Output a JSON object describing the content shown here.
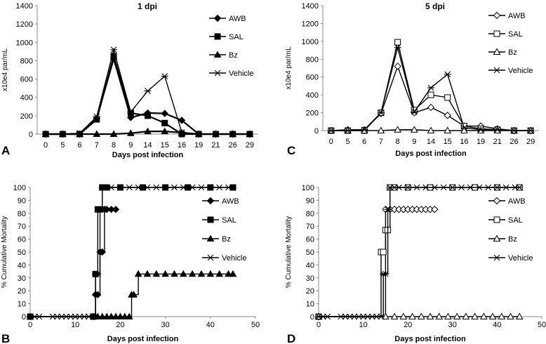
{
  "chart_data": [
    {
      "panel": "A",
      "type": "line",
      "title": "1 dpi",
      "xlabel": "Days post infection",
      "ylabel": "x10e4 par/mL",
      "ylim": [
        0,
        1400
      ],
      "yticks": [
        0,
        200,
        400,
        600,
        800,
        1000,
        1200,
        1400
      ],
      "categories": [
        "0",
        "5",
        "6",
        "7",
        "8",
        "9",
        "14",
        "15",
        "16",
        "19",
        "21",
        "26",
        "29"
      ],
      "series": [
        {
          "name": "AWB",
          "marker": "diamond-filled",
          "values": [
            0,
            0,
            0,
            170,
            820,
            180,
            230,
            225,
            150,
            0,
            0,
            0,
            0
          ]
        },
        {
          "name": "SAL",
          "marker": "square-filled",
          "values": [
            0,
            0,
            0,
            160,
            850,
            230,
            200,
            120,
            0,
            0,
            0,
            0,
            0
          ]
        },
        {
          "name": "Bz",
          "marker": "triangle-filled",
          "values": [
            0,
            0,
            0,
            0,
            0,
            10,
            30,
            30,
            15,
            0,
            0,
            0,
            0
          ]
        },
        {
          "name": "Vehicle",
          "marker": "star",
          "values": [
            0,
            0,
            10,
            190,
            920,
            240,
            470,
            630,
            20,
            0,
            0,
            0,
            0
          ]
        }
      ]
    },
    {
      "panel": "C",
      "type": "line",
      "title": "5 dpi",
      "xlabel": "Days post infection",
      "ylabel": "x10e4 par/mL",
      "ylim": [
        0,
        1400
      ],
      "yticks": [
        0,
        200,
        400,
        600,
        800,
        1000,
        1200,
        1400
      ],
      "categories": [
        "0",
        "5",
        "6",
        "7",
        "8",
        "9",
        "14",
        "15",
        "16",
        "19",
        "21",
        "26",
        "29"
      ],
      "series": [
        {
          "name": "AWB",
          "marker": "diamond-open",
          "values": [
            0,
            10,
            10,
            190,
            720,
            200,
            260,
            170,
            50,
            50,
            20,
            0,
            0
          ]
        },
        {
          "name": "SAL",
          "marker": "square-open",
          "values": [
            0,
            0,
            0,
            200,
            990,
            230,
            400,
            370,
            50,
            20,
            10,
            0,
            0
          ]
        },
        {
          "name": "Bz",
          "marker": "triangle-open",
          "values": [
            0,
            0,
            0,
            0,
            10,
            10,
            0,
            0,
            0,
            0,
            0,
            0,
            0
          ]
        },
        {
          "name": "Vehicle",
          "marker": "star",
          "values": [
            0,
            0,
            10,
            200,
            930,
            210,
            480,
            630,
            30,
            10,
            10,
            0,
            0
          ]
        }
      ]
    },
    {
      "panel": "B",
      "type": "line",
      "title": "",
      "xlabel": "Days post infection",
      "ylabel": "% Cumulative Mortality",
      "xlim": [
        0,
        50
      ],
      "xticks": [
        0,
        10,
        20,
        30,
        40,
        50
      ],
      "ylim": [
        0,
        100
      ],
      "yticks": [
        0,
        10,
        20,
        30,
        40,
        50,
        60,
        70,
        80,
        90,
        100
      ],
      "series": [
        {
          "name": "AWB",
          "marker": "diamond-filled",
          "x": [
            0,
            14,
            14.5,
            15,
            15.5,
            16,
            16.5,
            17,
            18,
            19
          ],
          "y": [
            0,
            0,
            17,
            17,
            50,
            50,
            83,
            83,
            83,
            83
          ]
        },
        {
          "name": "SAL",
          "marker": "square-filled",
          "x": [
            0,
            14,
            14.5,
            15,
            15.5,
            16,
            17,
            20,
            25,
            30,
            35,
            40,
            45
          ],
          "y": [
            0,
            0,
            33,
            83,
            83,
            100,
            100,
            100,
            100,
            100,
            100,
            100,
            100
          ]
        },
        {
          "name": "Bz",
          "marker": "triangle-filled",
          "x": [
            0,
            15,
            16,
            17,
            18,
            19,
            20,
            21,
            22,
            22.5,
            23,
            24,
            26,
            28,
            30,
            32,
            34,
            36,
            38,
            40,
            42,
            44,
            45
          ],
          "y": [
            0,
            0,
            0,
            0,
            0,
            0,
            0,
            0,
            0,
            17,
            17,
            33,
            33,
            33,
            33,
            33,
            33,
            33,
            33,
            33,
            33,
            33,
            33
          ]
        },
        {
          "name": "Vehicle",
          "marker": "star",
          "x": [
            0,
            1,
            2,
            5,
            6,
            7,
            8,
            9,
            10,
            11,
            12,
            13,
            14,
            14.5,
            15,
            15.5,
            16,
            17,
            18,
            20,
            22,
            24,
            26,
            28,
            30,
            32,
            34,
            36,
            38,
            40,
            42,
            44,
            45
          ],
          "y": [
            0,
            0,
            0,
            0,
            0,
            0,
            0,
            0,
            0,
            0,
            0,
            0,
            0,
            33,
            33,
            83,
            100,
            100,
            100,
            100,
            100,
            100,
            100,
            100,
            100,
            100,
            100,
            100,
            100,
            100,
            100,
            100,
            100
          ]
        }
      ]
    },
    {
      "panel": "D",
      "type": "line",
      "title": "",
      "xlabel": "Days post infection",
      "ylabel": "% Cumulative Mortality",
      "xlim": [
        0,
        50
      ],
      "xticks": [
        0,
        10,
        20,
        30,
        40,
        50
      ],
      "ylim": [
        0,
        100
      ],
      "yticks": [
        0,
        10,
        20,
        30,
        40,
        50,
        60,
        70,
        80,
        90,
        100
      ],
      "series": [
        {
          "name": "AWB",
          "marker": "diamond-open",
          "x": [
            0,
            15,
            16,
            17,
            18,
            19,
            20,
            21,
            22,
            23,
            24,
            25,
            26
          ],
          "y": [
            0,
            83,
            83,
            83,
            83,
            83,
            83,
            83,
            83,
            83,
            83,
            83,
            83
          ]
        },
        {
          "name": "SAL",
          "marker": "square-open",
          "x": [
            0,
            14,
            14.5,
            15,
            15.5,
            16,
            17,
            20,
            25,
            30,
            35,
            40,
            45
          ],
          "y": [
            0,
            50,
            50,
            67,
            67,
            100,
            100,
            100,
            100,
            100,
            100,
            100,
            100
          ]
        },
        {
          "name": "Bz",
          "marker": "triangle-open",
          "x": [
            0,
            15,
            17,
            19,
            21,
            23,
            25,
            27,
            29,
            31,
            33,
            35,
            37,
            39,
            41,
            43,
            45
          ],
          "y": [
            0,
            0,
            0,
            0,
            0,
            0,
            0,
            0,
            0,
            0,
            0,
            0,
            0,
            0,
            0,
            0,
            0
          ]
        },
        {
          "name": "Vehicle",
          "marker": "star",
          "x": [
            0,
            1,
            2,
            5,
            6,
            7,
            8,
            9,
            10,
            11,
            12,
            13,
            14,
            14.5,
            15,
            15.5,
            16,
            17,
            18,
            20,
            22,
            24,
            26,
            28,
            30,
            32,
            34,
            36,
            38,
            40,
            42,
            44,
            45
          ],
          "y": [
            0,
            0,
            0,
            0,
            0,
            0,
            0,
            0,
            0,
            0,
            0,
            0,
            0,
            33,
            33,
            83,
            100,
            100,
            100,
            100,
            100,
            100,
            100,
            100,
            100,
            100,
            100,
            100,
            100,
            100,
            100,
            100,
            100
          ]
        }
      ]
    }
  ]
}
